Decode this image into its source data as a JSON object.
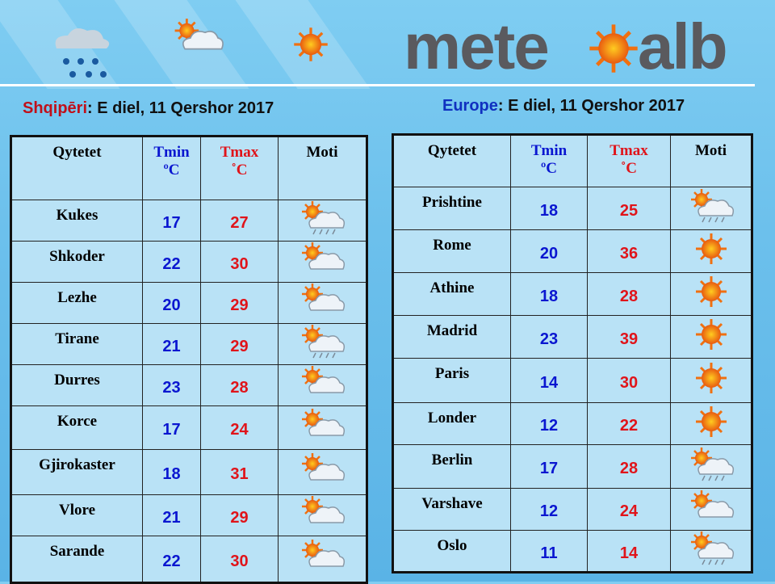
{
  "logo": {
    "left": "mete",
    "right": "alb"
  },
  "albania": {
    "label": "Shqipēri",
    "date": ": E diel, 11 Qershor 2017",
    "headers": {
      "city": "Qytetet",
      "tmin": "Tmin",
      "tmin_unit": "ºC",
      "tmax": "Tmax",
      "tmax_unit": "˚C",
      "weather": "Moti"
    },
    "rows": [
      {
        "city": "Kukes",
        "tmin": "17",
        "tmax": "27",
        "icon": "sun-cloud-rain-icon"
      },
      {
        "city": "Shkoder",
        "tmin": "22",
        "tmax": "30",
        "icon": "sun-cloud-icon"
      },
      {
        "city": "Lezhe",
        "tmin": "20",
        "tmax": "29",
        "icon": "sun-cloud-icon"
      },
      {
        "city": "Tirane",
        "tmin": "21",
        "tmax": "29",
        "icon": "sun-cloud-rain-icon"
      },
      {
        "city": "Durres",
        "tmin": "23",
        "tmax": "28",
        "icon": "sun-cloud-icon"
      },
      {
        "city": "Korce",
        "tmin": "17",
        "tmax": "24",
        "icon": "sun-cloud-icon"
      },
      {
        "city": "Gjirokaster",
        "tmin": "18",
        "tmax": "31",
        "icon": "sun-cloud-icon"
      },
      {
        "city": "Vlore",
        "tmin": "21",
        "tmax": "29",
        "icon": "sun-cloud-icon"
      },
      {
        "city": "Sarande",
        "tmin": "22",
        "tmax": "30",
        "icon": "sun-cloud-icon"
      }
    ]
  },
  "europe": {
    "label": "Europe",
    "date": ": E diel, 11 Qershor 2017",
    "headers": {
      "city": "Qytetet",
      "tmin": "Tmin",
      "tmin_unit": "ºC",
      "tmax": "Tmax",
      "tmax_unit": "˚C",
      "weather": "Moti"
    },
    "rows": [
      {
        "city": "Prishtine",
        "tmin": "18",
        "tmax": "25",
        "icon": "sun-cloud-rain-icon"
      },
      {
        "city": "Rome",
        "tmin": "20",
        "tmax": "36",
        "icon": "sun-icon"
      },
      {
        "city": "Athine",
        "tmin": "18",
        "tmax": "28",
        "icon": "sun-icon"
      },
      {
        "city": "Madrid",
        "tmin": "23",
        "tmax": "39",
        "icon": "sun-icon"
      },
      {
        "city": "Paris",
        "tmin": "14",
        "tmax": "30",
        "icon": "sun-icon"
      },
      {
        "city": "Londer",
        "tmin": "12",
        "tmax": "22",
        "icon": "sun-icon"
      },
      {
        "city": "Berlin",
        "tmin": "17",
        "tmax": "28",
        "icon": "sun-cloud-rain-icon"
      },
      {
        "city": "Varshave",
        "tmin": "12",
        "tmax": "24",
        "icon": "sun-cloud-icon"
      },
      {
        "city": "Oslo",
        "tmin": "11",
        "tmax": "14",
        "icon": "sun-cloud-rain-icon"
      }
    ]
  }
}
